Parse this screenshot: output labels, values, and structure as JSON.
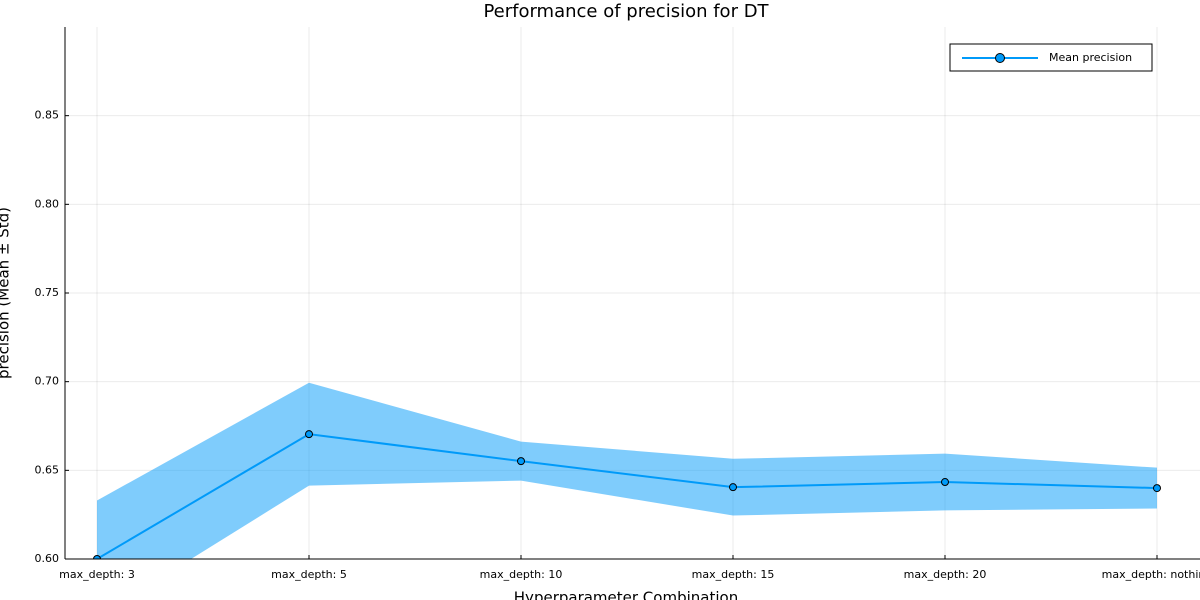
{
  "chart_data": {
    "type": "line",
    "title": "Performance of precision for DT",
    "x_label": "Hyperparameter Combination",
    "y_label": "precision (Mean ± Std)",
    "categories": [
      "max_depth: 3",
      "max_depth: 5",
      "max_depth: 10",
      "max_depth: 15",
      "max_depth: 20",
      "max_depth: nothing"
    ],
    "series": [
      {
        "name": "Mean precision",
        "color": "#009af9",
        "values": [
          0.6,
          0.6704,
          0.6552,
          0.6405,
          0.6434,
          0.64
        ],
        "errors": [
          0.033,
          0.029,
          0.011,
          0.016,
          0.016,
          0.0115
        ]
      }
    ],
    "ylim": [
      0.6,
      0.9
    ],
    "yticks": [
      0.6,
      0.65,
      0.7,
      0.75,
      0.8,
      0.85
    ],
    "ytick_labels": [
      "0.60",
      "0.65",
      "0.70",
      "0.75",
      "0.80",
      "0.85"
    ],
    "grid": true,
    "legend": "top-right"
  }
}
